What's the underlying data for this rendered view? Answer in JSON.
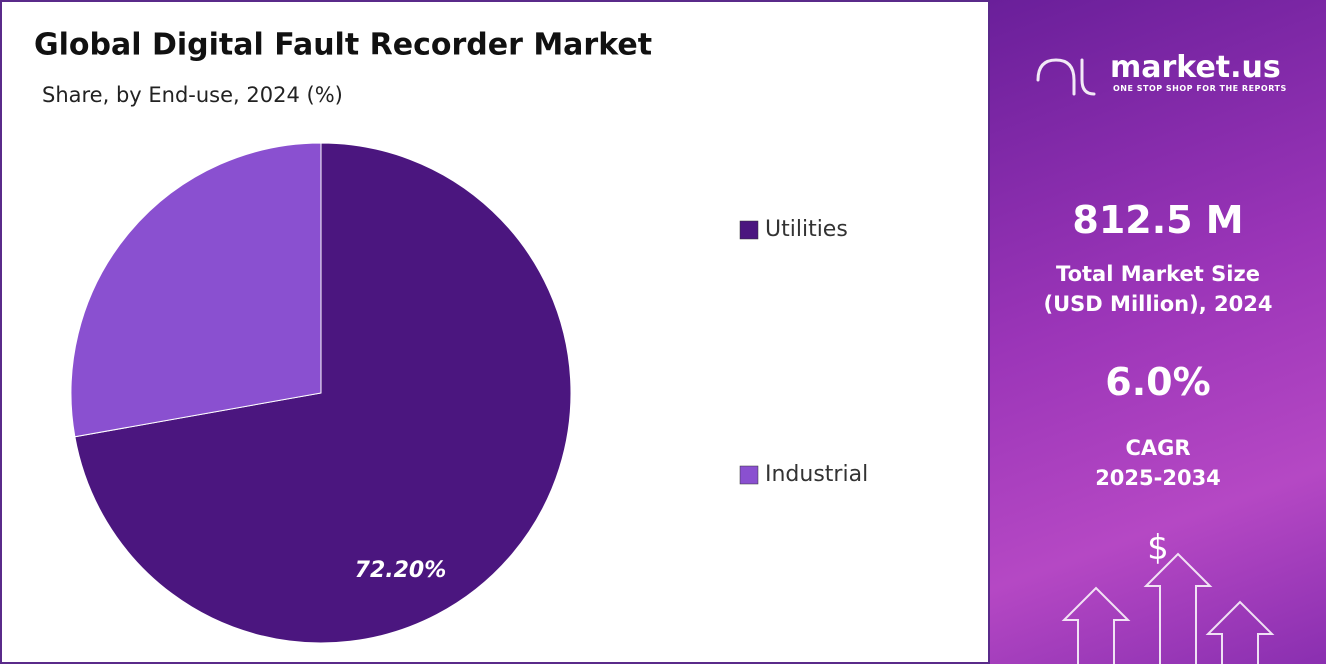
{
  "chart_data": {
    "type": "pie",
    "title": "Global Digital Fault Recorder Market",
    "subtitle": "Share, by  End-use, 2024 (%)",
    "categories": [
      "Utilities",
      "Industrial"
    ],
    "values": [
      72.2,
      27.8
    ],
    "value_labels": [
      "72.20%",
      null
    ],
    "colors": [
      "#4b167f",
      "#8a50d0"
    ],
    "legend": "right"
  },
  "sidebar": {
    "brand": "market.us",
    "tagline": "ONE STOP SHOP FOR THE REPORTS",
    "market_size": "812.5 M",
    "market_size_label_1": "Total Market Size",
    "market_size_label_2": "(USD Million), 2024",
    "cagr": "6.0%",
    "cagr_label_1": "CAGR",
    "cagr_label_2": "2025-2034",
    "icon": "$"
  }
}
